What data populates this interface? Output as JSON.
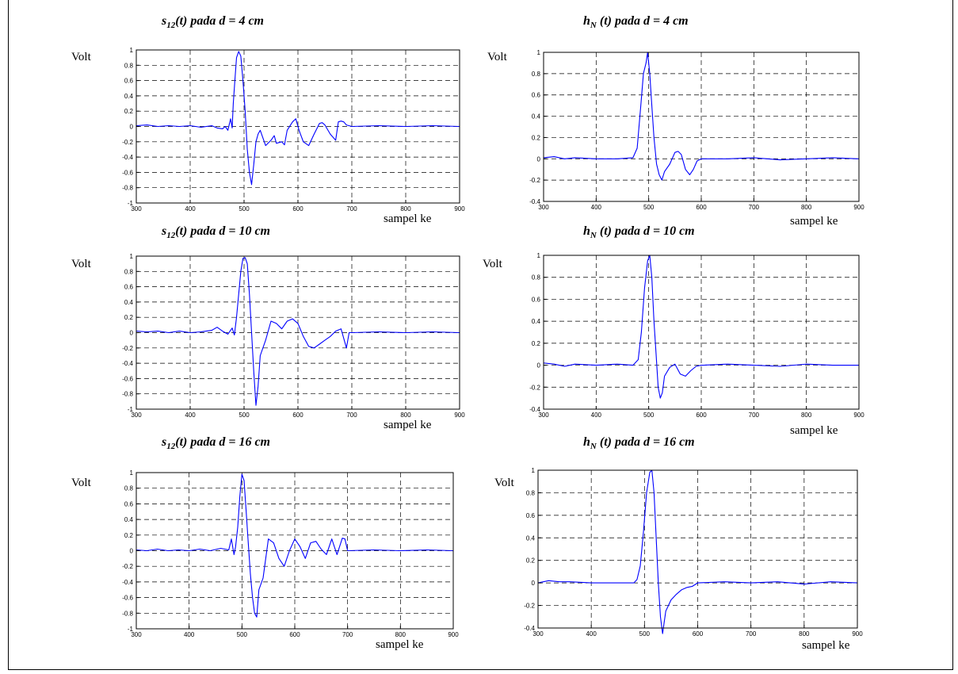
{
  "chart_data": [
    {
      "type": "line",
      "title": "s12(t) pada d = 4 cm",
      "title_parts": {
        "symbol": "s",
        "subscript": "12",
        "rest": "(t) pada d = 4 cm"
      },
      "ylabel": "Volt",
      "xlabel": "sampel ke",
      "xlim": [
        300,
        900
      ],
      "ylim": [
        -1,
        1
      ],
      "xticks": [
        300,
        400,
        500,
        600,
        700,
        800,
        900
      ],
      "yticks": [
        -1,
        -0.8,
        -0.6,
        -0.4,
        -0.2,
        0,
        0.2,
        0.4,
        0.6,
        0.8,
        1
      ],
      "grid": true,
      "line_color": "#0000ff",
      "series": [
        {
          "x": [
            300,
            320,
            340,
            360,
            380,
            400,
            420,
            440,
            450,
            460,
            465,
            470,
            475,
            478,
            480,
            483,
            486,
            490,
            494,
            498,
            502,
            506,
            510,
            514,
            518,
            522,
            526,
            530,
            540,
            550,
            556,
            560,
            570,
            575,
            580,
            590,
            596,
            602,
            610,
            620,
            630,
            640,
            645,
            650,
            660,
            670,
            675,
            680,
            685,
            690,
            700,
            750,
            800,
            850,
            900
          ],
          "y": [
            0.01,
            0.02,
            0,
            0.01,
            0,
            0.01,
            -0.01,
            0.01,
            -0.02,
            -0.03,
            0,
            -0.05,
            0.1,
            -0.02,
            0.3,
            0.6,
            0.9,
            0.98,
            0.92,
            0.6,
            0.2,
            -0.3,
            -0.6,
            -0.76,
            -0.5,
            -0.2,
            -0.1,
            -0.05,
            -0.25,
            -0.18,
            -0.12,
            -0.22,
            -0.2,
            -0.24,
            -0.05,
            0.06,
            0.1,
            -0.05,
            -0.2,
            -0.25,
            -0.1,
            0.04,
            0.05,
            0.02,
            -0.1,
            -0.18,
            0.06,
            0.07,
            0.06,
            0.02,
            0,
            0.01,
            0,
            0.01,
            0
          ]
        }
      ]
    },
    {
      "type": "line",
      "title": "hN(t) pada d = 4 cm",
      "title_parts": {
        "symbol": "h",
        "subscript": "N",
        "rest": " (t) pada d = 4 cm"
      },
      "ylabel": "Volt",
      "xlabel": "sampel ke",
      "xlim": [
        300,
        900
      ],
      "ylim": [
        -0.4,
        1
      ],
      "xticks": [
        300,
        400,
        500,
        600,
        700,
        800,
        900
      ],
      "yticks": [
        -0.4,
        -0.2,
        0,
        0.2,
        0.4,
        0.6,
        0.8,
        1
      ],
      "grid": true,
      "line_color": "#0000ff",
      "series": [
        {
          "x": [
            300,
            320,
            340,
            360,
            400,
            440,
            470,
            478,
            485,
            490,
            495,
            498,
            502,
            506,
            510,
            515,
            520,
            525,
            530,
            540,
            550,
            556,
            562,
            570,
            578,
            585,
            592,
            600,
            650,
            700,
            750,
            800,
            850,
            900
          ],
          "y": [
            0.01,
            0.02,
            0,
            0.01,
            0,
            0,
            0.01,
            0.1,
            0.5,
            0.8,
            0.9,
            1,
            0.8,
            0.5,
            0.2,
            -0.05,
            -0.15,
            -0.2,
            -0.12,
            -0.05,
            0.06,
            0.07,
            0.04,
            -0.1,
            -0.15,
            -0.1,
            -0.02,
            0,
            0,
            0.01,
            -0.01,
            0,
            0.01,
            0
          ]
        }
      ]
    },
    {
      "type": "line",
      "title": "s12(t) pada d = 10 cm",
      "title_parts": {
        "symbol": "s",
        "subscript": "12",
        "rest": "(t) pada d = 10 cm"
      },
      "ylabel": "Volt",
      "xlabel": "sampel ke",
      "xlim": [
        300,
        900
      ],
      "ylim": [
        -1,
        1
      ],
      "xticks": [
        300,
        400,
        500,
        600,
        700,
        800,
        900
      ],
      "yticks": [
        -1,
        -0.8,
        -0.6,
        -0.4,
        -0.2,
        0,
        0.2,
        0.4,
        0.6,
        0.8,
        1
      ],
      "grid": true,
      "line_color": "#0000ff",
      "series": [
        {
          "x": [
            300,
            320,
            340,
            360,
            380,
            400,
            420,
            440,
            450,
            460,
            470,
            478,
            482,
            486,
            490,
            494,
            498,
            502,
            506,
            510,
            514,
            518,
            522,
            526,
            530,
            540,
            550,
            560,
            570,
            580,
            590,
            600,
            610,
            620,
            630,
            640,
            650,
            660,
            670,
            680,
            690,
            695,
            700,
            750,
            800,
            850,
            900
          ],
          "y": [
            0.02,
            0.01,
            0.02,
            0,
            0.02,
            0,
            0.01,
            0.03,
            0.07,
            0.02,
            -0.02,
            0.06,
            -0.03,
            0.2,
            0.5,
            0.8,
            0.97,
            0.98,
            0.9,
            0.5,
            0,
            -0.5,
            -0.95,
            -0.7,
            -0.3,
            -0.1,
            0.15,
            0.12,
            0.05,
            0.15,
            0.18,
            0.12,
            -0.05,
            -0.18,
            -0.2,
            -0.15,
            -0.1,
            -0.05,
            0.02,
            0.05,
            -0.2,
            0,
            0,
            0.01,
            0,
            0.01,
            0
          ]
        }
      ]
    },
    {
      "type": "line",
      "title": "hN(t) pada d = 10 cm",
      "title_parts": {
        "symbol": "h",
        "subscript": "N",
        "rest": " (t) pada d = 10 cm"
      },
      "ylabel": "Volt",
      "xlabel": "sampel ke",
      "xlim": [
        300,
        900
      ],
      "ylim": [
        -0.4,
        1
      ],
      "xticks": [
        300,
        400,
        500,
        600,
        700,
        800,
        900
      ],
      "yticks": [
        -0.4,
        -0.2,
        0,
        0.2,
        0.4,
        0.6,
        0.8,
        1
      ],
      "grid": true,
      "line_color": "#0000ff",
      "series": [
        {
          "x": [
            300,
            320,
            340,
            360,
            400,
            440,
            470,
            480,
            486,
            492,
            498,
            502,
            506,
            510,
            514,
            518,
            522,
            526,
            530,
            540,
            550,
            560,
            570,
            580,
            590,
            600,
            650,
            700,
            750,
            800,
            850,
            900
          ],
          "y": [
            0.02,
            0.01,
            -0.01,
            0.01,
            0,
            0.01,
            0,
            0.05,
            0.3,
            0.7,
            0.95,
            1,
            0.8,
            0.4,
            0.1,
            -0.2,
            -0.3,
            -0.25,
            -0.1,
            -0.02,
            0.01,
            -0.08,
            -0.1,
            -0.05,
            -0.01,
            0,
            0.01,
            0,
            -0.01,
            0.01,
            0,
            0
          ]
        }
      ]
    },
    {
      "type": "line",
      "title": "s12(t) pada d = 16 cm",
      "title_parts": {
        "symbol": "s",
        "subscript": "12",
        "rest": "(t) pada d = 16 cm"
      },
      "ylabel": "Volt",
      "xlabel": "sampel ke",
      "xlim": [
        300,
        900
      ],
      "ylim": [
        -1,
        1
      ],
      "xticks": [
        300,
        400,
        500,
        600,
        700,
        800,
        900
      ],
      "yticks": [
        -1,
        -0.8,
        -0.6,
        -0.4,
        -0.2,
        0,
        0.2,
        0.4,
        0.6,
        0.8,
        1
      ],
      "grid": true,
      "line_color": "#0000ff",
      "series": [
        {
          "x": [
            300,
            320,
            340,
            360,
            380,
            400,
            420,
            440,
            460,
            475,
            480,
            485,
            488,
            492,
            496,
            500,
            504,
            508,
            512,
            516,
            520,
            524,
            528,
            532,
            540,
            550,
            560,
            570,
            580,
            590,
            600,
            610,
            620,
            630,
            640,
            650,
            660,
            670,
            680,
            690,
            695,
            700,
            750,
            800,
            850,
            900
          ],
          "y": [
            0.01,
            0,
            0.02,
            0,
            0.01,
            0,
            0.02,
            0,
            0.03,
            0.01,
            0.15,
            -0.05,
            0.05,
            0.3,
            0.7,
            0.98,
            0.9,
            0.5,
            0.1,
            -0.3,
            -0.6,
            -0.8,
            -0.85,
            -0.5,
            -0.35,
            0.15,
            0.1,
            -0.1,
            -0.2,
            0,
            0.15,
            0.05,
            -0.1,
            0.1,
            0.12,
            0.02,
            -0.05,
            0.15,
            -0.05,
            0.16,
            0.15,
            0,
            0.01,
            0,
            0.01,
            0
          ]
        }
      ]
    },
    {
      "type": "line",
      "title": "hN(t) pada d = 16 cm",
      "title_parts": {
        "symbol": "h",
        "subscript": "N",
        "rest": " (t) pada d = 16 cm"
      },
      "ylabel": "Volt",
      "xlabel": "sampel ke",
      "xlim": [
        300,
        900
      ],
      "ylim": [
        -0.4,
        1
      ],
      "xticks": [
        300,
        400,
        500,
        600,
        700,
        800,
        900
      ],
      "yticks": [
        -0.4,
        -0.2,
        0,
        0.2,
        0.4,
        0.6,
        0.8,
        1
      ],
      "grid": true,
      "line_color": "#0000ff",
      "series": [
        {
          "x": [
            300,
            320,
            340,
            360,
            400,
            440,
            480,
            486,
            492,
            498,
            504,
            510,
            514,
            518,
            522,
            526,
            530,
            534,
            540,
            550,
            560,
            570,
            580,
            590,
            600,
            650,
            700,
            750,
            800,
            850,
            900
          ],
          "y": [
            0,
            0.02,
            0.01,
            0.01,
            0,
            0,
            0,
            0.03,
            0.15,
            0.45,
            0.8,
            0.98,
            1,
            0.8,
            0.4,
            0,
            -0.3,
            -0.45,
            -0.25,
            -0.15,
            -0.1,
            -0.06,
            -0.04,
            -0.03,
            0,
            0.01,
            0,
            0.01,
            -0.01,
            0.01,
            0
          ]
        }
      ]
    }
  ]
}
